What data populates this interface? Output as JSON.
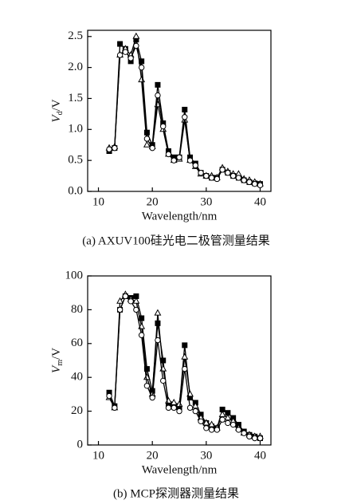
{
  "chart_data": [
    {
      "type": "line",
      "caption": "(a) AXUV100硅光电二极管测量结果",
      "xlabel": "Wavelength/nm",
      "ylabel": "V",
      "ylabel_sub": "d",
      "ylabel_unit": "/V",
      "xlim": [
        8,
        42
      ],
      "xticks": [
        10,
        20,
        30,
        40
      ],
      "ylim": [
        0,
        2.6
      ],
      "yticks": [
        {
          "value": 0,
          "label": "0.0"
        },
        0.5,
        {
          "value": 1,
          "label": "1.0"
        },
        1.5,
        {
          "value": 2,
          "label": "2.0"
        },
        2.5
      ],
      "x": [
        12,
        13,
        14,
        15,
        16,
        17,
        18,
        19,
        20,
        21,
        22,
        23,
        24,
        25,
        26,
        27,
        28,
        29,
        30,
        31,
        32,
        33,
        34,
        35,
        36,
        37,
        38,
        39,
        40
      ],
      "series": [
        {
          "color": "#000000",
          "marker": "square",
          "filled": true,
          "values": [
            0.65,
            0.7,
            2.38,
            2.3,
            2.1,
            2.45,
            2.1,
            0.95,
            0.75,
            1.72,
            1.1,
            0.65,
            0.55,
            0.55,
            1.32,
            0.55,
            0.45,
            0.3,
            0.25,
            0.22,
            0.22,
            0.35,
            0.3,
            0.25,
            0.22,
            0.18,
            0.15,
            0.13,
            0.12
          ]
        },
        {
          "color": "#000000",
          "marker": "triangle",
          "filled": false,
          "values": [
            0.7,
            0.72,
            2.2,
            2.3,
            2.2,
            2.5,
            1.8,
            0.75,
            0.72,
            1.4,
            1.0,
            0.6,
            0.5,
            0.52,
            1.15,
            0.5,
            0.4,
            0.28,
            0.25,
            0.25,
            0.22,
            0.38,
            0.32,
            0.28,
            0.28,
            0.2,
            0.18,
            0.15,
            0.12
          ]
        },
        {
          "color": "#000000",
          "marker": "circle",
          "filled": false,
          "values": [
            0.68,
            0.7,
            2.2,
            2.25,
            2.15,
            2.35,
            2.0,
            0.85,
            0.7,
            1.55,
            1.05,
            0.6,
            0.5,
            0.55,
            1.2,
            0.5,
            0.42,
            0.3,
            0.25,
            0.22,
            0.2,
            0.35,
            0.3,
            0.25,
            0.22,
            0.18,
            0.15,
            0.12,
            0.1
          ]
        }
      ]
    },
    {
      "type": "line",
      "caption": "(b) MCP探测器测量结果",
      "xlabel": "Wavelength/nm",
      "ylabel": "V",
      "ylabel_sub": "m",
      "ylabel_unit": "/V",
      "xlim": [
        8,
        42
      ],
      "xticks": [
        10,
        20,
        30,
        40
      ],
      "ylim": [
        0,
        100
      ],
      "yticks": [
        0,
        20,
        40,
        60,
        80,
        100
      ],
      "x": [
        12,
        13,
        14,
        15,
        16,
        17,
        18,
        19,
        20,
        21,
        22,
        23,
        24,
        25,
        26,
        27,
        28,
        29,
        30,
        31,
        32,
        33,
        34,
        35,
        36,
        37,
        38,
        39,
        40
      ],
      "series": [
        {
          "color": "#000000",
          "marker": "square",
          "filled": true,
          "values": [
            31,
            23,
            80,
            88,
            87,
            88,
            75,
            45,
            32,
            72,
            50,
            23,
            23,
            22,
            59,
            28,
            25,
            18,
            13,
            11,
            10,
            21,
            19,
            16,
            12,
            8,
            6,
            5,
            4
          ]
        },
        {
          "color": "#000000",
          "marker": "triangle",
          "filled": false,
          "values": [
            28,
            22,
            85,
            89,
            86,
            85,
            70,
            40,
            30,
            78,
            45,
            26,
            25,
            24,
            52,
            30,
            23,
            16,
            13,
            12,
            10,
            18,
            16,
            14,
            10,
            7,
            6,
            5,
            5
          ]
        },
        {
          "color": "#000000",
          "marker": "circle",
          "filled": false,
          "values": [
            29,
            22,
            80,
            88,
            85,
            80,
            65,
            35,
            28,
            62,
            38,
            22,
            22,
            20,
            45,
            22,
            20,
            14,
            10,
            9,
            9,
            15,
            13,
            12,
            9,
            7,
            5,
            4,
            4
          ]
        }
      ]
    }
  ]
}
